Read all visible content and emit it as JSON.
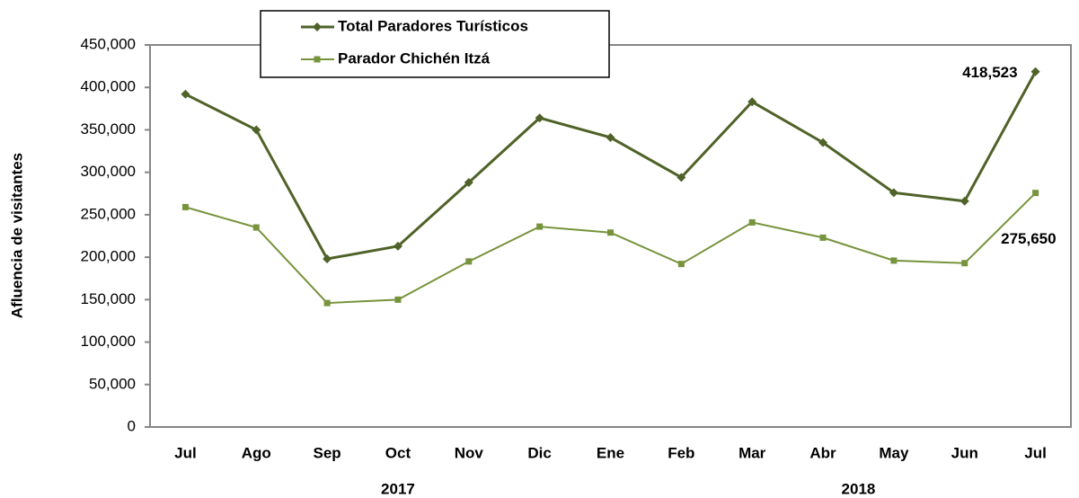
{
  "chart_data": {
    "type": "line",
    "y_label": "Afluencia de visitantes",
    "categories": [
      "Jul",
      "Ago",
      "Sep",
      "Oct",
      "Nov",
      "Dic",
      "Ene",
      "Feb",
      "Mar",
      "Abr",
      "May",
      "Jun",
      "Jul"
    ],
    "year_labels": [
      "2017",
      "2018"
    ],
    "series": [
      {
        "name": "Total Paradores Turísticos",
        "color": "#4f6228",
        "marker": "diamond",
        "values": [
          392000,
          350000,
          198000,
          213000,
          288000,
          364000,
          341000,
          294000,
          383000,
          335000,
          276000,
          266000,
          418523
        ],
        "value_labels": [
          null,
          null,
          null,
          null,
          null,
          null,
          null,
          null,
          null,
          null,
          null,
          null,
          "418,523"
        ]
      },
      {
        "name": "Parador Chichén Itzá",
        "color": "#77933c",
        "marker": "square",
        "values": [
          259000,
          235000,
          146000,
          150000,
          195000,
          236000,
          229000,
          192000,
          241000,
          223000,
          196000,
          193000,
          275650
        ],
        "value_labels": [
          null,
          null,
          null,
          null,
          null,
          null,
          null,
          null,
          null,
          null,
          null,
          null,
          "275,650"
        ]
      }
    ],
    "ylim": [
      0,
      450000
    ],
    "yticks": [
      0,
      {
        "value": 50000,
        "label": "50,000"
      },
      {
        "value": 100000,
        "label": "100,000"
      },
      {
        "value": 150000,
        "label": "150,000"
      },
      {
        "value": 200000,
        "label": "200,000"
      },
      {
        "value": 250000,
        "label": "250,000"
      },
      {
        "value": 300000,
        "label": "300,000"
      },
      {
        "value": 350000,
        "label": "350,000"
      },
      {
        "value": 400000,
        "label": "400,000"
      },
      {
        "value": 450000,
        "label": "450,000"
      }
    ],
    "grid": false
  }
}
